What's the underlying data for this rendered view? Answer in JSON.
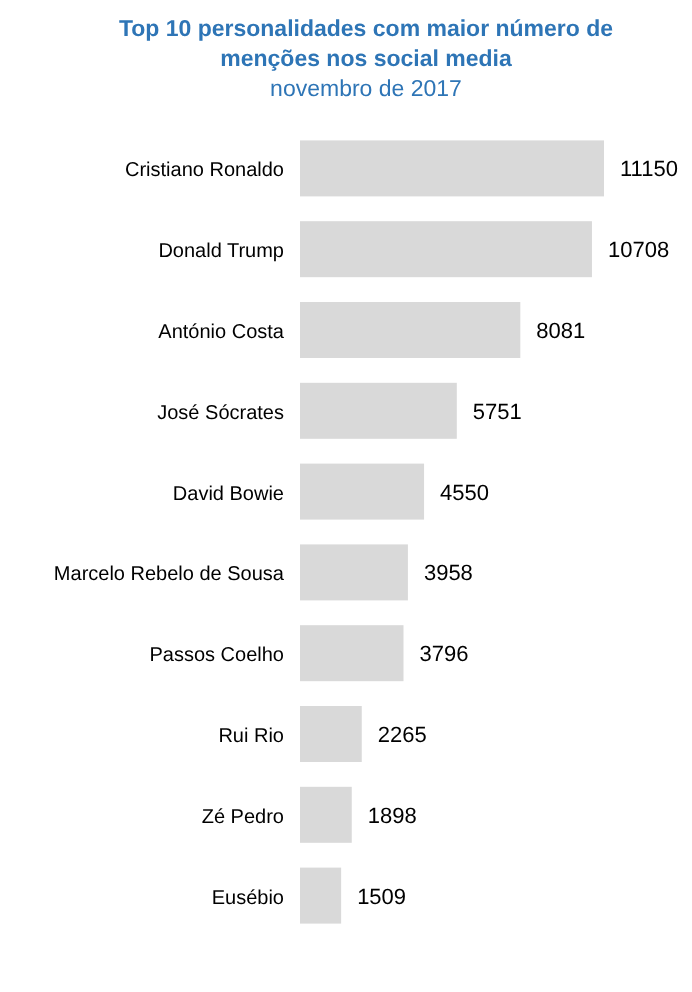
{
  "chart_data": {
    "type": "bar",
    "orientation": "horizontal",
    "title": "Top 10 personalidades com maior número de menções nos social media",
    "subtitle": "novembro de 2017",
    "categories": [
      "Cristiano Ronaldo",
      "Donald Trump",
      "António Costa",
      "José Sócrates",
      "David Bowie",
      "Marcelo Rebelo de Sousa",
      "Passos Coelho",
      "Rui Rio",
      "Zé Pedro",
      "Eusébio"
    ],
    "values": [
      11150,
      10708,
      8081,
      5751,
      4550,
      3958,
      3796,
      2265,
      1898,
      1509
    ],
    "color": "#d9d9d9",
    "data_labels": true
  }
}
